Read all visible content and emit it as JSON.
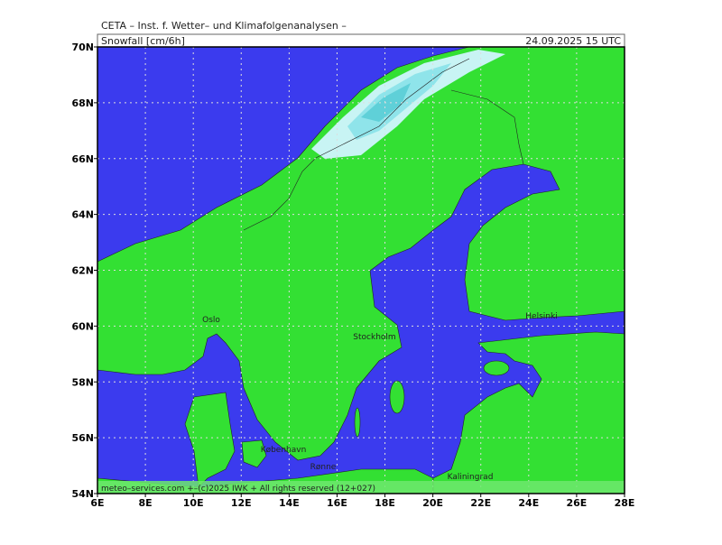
{
  "header": {
    "title": "CETA – Inst. f. Wetter– und Klimafolgenanalysen –",
    "variable": "Snowfall [cm/6h]",
    "valid_time": "24.09.2025 15 UTC"
  },
  "map": {
    "lon_ticks": [
      {
        "value": 6,
        "label": "6E"
      },
      {
        "value": 8,
        "label": "8E"
      },
      {
        "value": 10,
        "label": "10E"
      },
      {
        "value": 12,
        "label": "12E"
      },
      {
        "value": 14,
        "label": "14E"
      },
      {
        "value": 16,
        "label": "16E"
      },
      {
        "value": 18,
        "label": "18E"
      },
      {
        "value": 20,
        "label": "20E"
      },
      {
        "value": 22,
        "label": "22E"
      },
      {
        "value": 24,
        "label": "24E"
      },
      {
        "value": 26,
        "label": "26E"
      },
      {
        "value": 28,
        "label": "28E"
      }
    ],
    "lat_ticks": [
      {
        "value": 54,
        "label": "54N"
      },
      {
        "value": 56,
        "label": "56N"
      },
      {
        "value": 58,
        "label": "58N"
      },
      {
        "value": 60,
        "label": "60N"
      },
      {
        "value": 62,
        "label": "62N"
      },
      {
        "value": 64,
        "label": "64N"
      },
      {
        "value": 66,
        "label": "66N"
      },
      {
        "value": 68,
        "label": "68N"
      },
      {
        "value": 70,
        "label": "70N"
      }
    ],
    "cities": [
      "Oslo",
      "Stockholm",
      "Helsinki",
      "København",
      "Rønne",
      "Kaliningrad"
    ],
    "credit": "meteo–services.com +–(c)2025 IWK + All rights reserved (12+027)"
  }
}
